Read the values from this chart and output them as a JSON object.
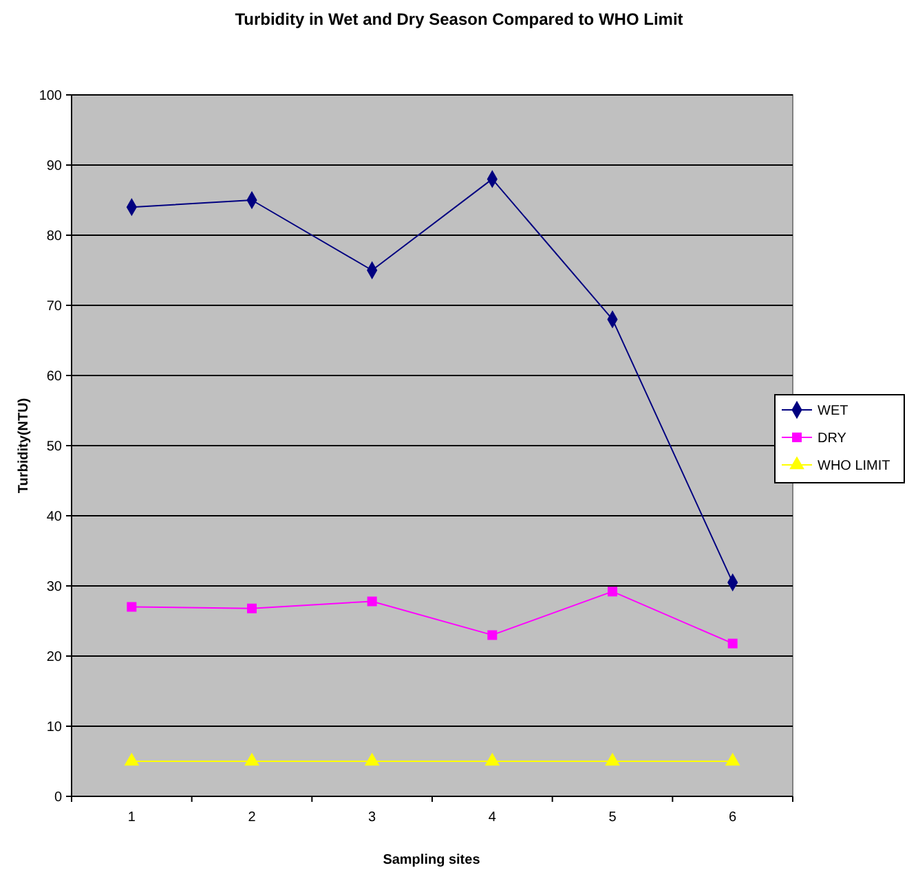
{
  "chart_data": {
    "type": "line",
    "title": "Turbidity in Wet and Dry Season Compared to WHO Limit",
    "xlabel": "Sampling sites",
    "ylabel": "Turbidity(NTU)",
    "categories": [
      "1",
      "2",
      "3",
      "4",
      "5",
      "6"
    ],
    "series": [
      {
        "name": "WET",
        "color": "#000080",
        "values": [
          84,
          85,
          75,
          88,
          68,
          30.5
        ],
        "marker": "diamond"
      },
      {
        "name": "DRY",
        "color": "#ff00ff",
        "values": [
          27,
          26.8,
          27.8,
          23,
          29.2,
          21.8
        ],
        "marker": "square"
      },
      {
        "name": "WHO LIMIT",
        "color": "#ffff00",
        "values": [
          5,
          5,
          5,
          5,
          5,
          5
        ],
        "marker": "triangle"
      }
    ],
    "ylim": [
      0,
      100
    ],
    "yticks": [
      0,
      10,
      20,
      30,
      40,
      50,
      60,
      70,
      80,
      90,
      100
    ],
    "grid": "y",
    "legend": "right"
  }
}
